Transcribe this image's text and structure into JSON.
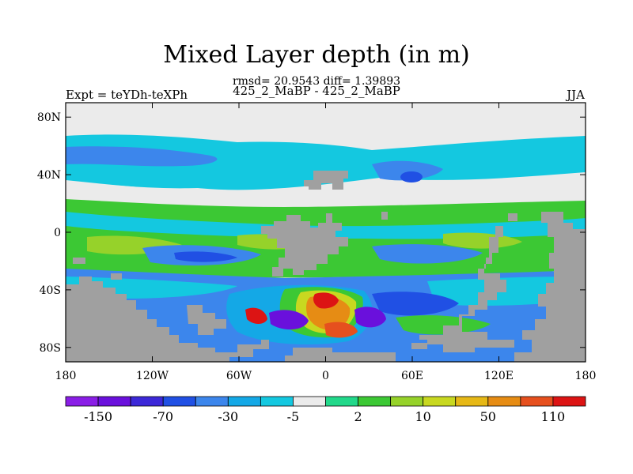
{
  "chart_data": {
    "type": "heatmap",
    "title": "Mixed Layer depth (in m)",
    "stats_line": "rmsd= 20.9543 diff= 1.39893",
    "subtitle": "425_2_MaBP - 425_2_MaBP",
    "left_label": "Expt = teYDh-teXPh",
    "right_label": "JJA",
    "xlim": [
      -180,
      180
    ],
    "ylim": [
      -90,
      90
    ],
    "x_ticks": [
      {
        "value": -180,
        "label": "180"
      },
      {
        "value": -120,
        "label": "120W"
      },
      {
        "value": -60,
        "label": "60W"
      },
      {
        "value": 0,
        "label": "0"
      },
      {
        "value": 60,
        "label": "60E"
      },
      {
        "value": 120,
        "label": "120E"
      },
      {
        "value": 180,
        "label": "180"
      }
    ],
    "y_ticks": [
      {
        "value": 80,
        "label": "80N"
      },
      {
        "value": 40,
        "label": "40N"
      },
      {
        "value": 0,
        "label": "0"
      },
      {
        "value": -40,
        "label": "40S"
      },
      {
        "value": -80,
        "label": "80S"
      }
    ],
    "colorbar": {
      "colors": [
        "#8a1ee6",
        "#6a10dc",
        "#3c28d8",
        "#2050e4",
        "#3c86ec",
        "#14a8e6",
        "#14c8e0",
        "#ebebeb",
        "#22d88a",
        "#3cc834",
        "#96d22a",
        "#c8d820",
        "#e6b816",
        "#e68c14",
        "#e6501e",
        "#dc1414"
      ],
      "labels": [
        {
          "after_box": 1,
          "text": "-150"
        },
        {
          "after_box": 3,
          "text": "-70"
        },
        {
          "after_box": 5,
          "text": "-30"
        },
        {
          "after_box": 7,
          "text": "-5"
        },
        {
          "after_box": 9,
          "text": "2"
        },
        {
          "after_box": 11,
          "text": "10"
        },
        {
          "after_box": 13,
          "text": "50"
        },
        {
          "after_box": 15,
          "text": "110"
        }
      ]
    },
    "land_color": "#a0a0a0",
    "fields": {
      "arctic": {
        "value": 0,
        "color": "#ebebeb"
      },
      "north_pacific_band": {
        "value": -10,
        "color": "#14c8e0"
      },
      "tropics": {
        "value": 10,
        "color": "#3cc834"
      },
      "south_indian_blue": {
        "value": -40,
        "color": "#2050e4"
      },
      "south_atlantic_max": {
        "value": 150,
        "color": "#dc1414"
      },
      "south_atlantic_min": {
        "value": -150,
        "color": "#6a10dc"
      }
    }
  }
}
